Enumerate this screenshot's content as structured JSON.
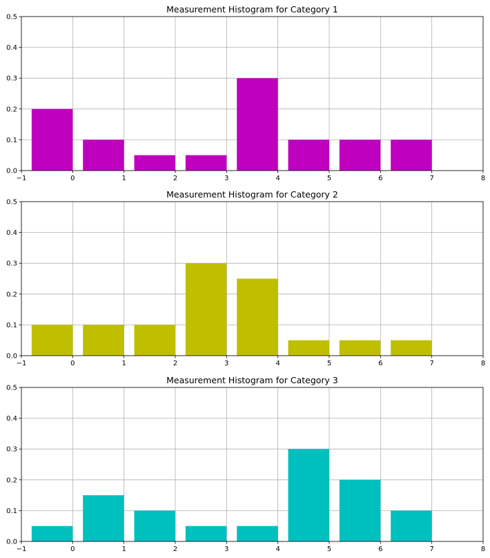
{
  "chart_data": [
    {
      "type": "bar",
      "title": "Measurement Histogram for Category 1",
      "x": [
        0,
        1,
        2,
        3,
        4,
        5,
        6,
        7
      ],
      "values": [
        0.2,
        0.1,
        0.05,
        0.05,
        0.3,
        0.1,
        0.1,
        0.1
      ],
      "bar_align": "edge-left",
      "bar_width": 0.8,
      "color": "#bf00bf",
      "xlim": [
        -1,
        8
      ],
      "ylim": [
        0,
        0.5
      ],
      "xticks": [
        -1,
        0,
        1,
        2,
        3,
        4,
        5,
        6,
        7,
        8
      ],
      "yticks": [
        0.0,
        0.1,
        0.2,
        0.3,
        0.4,
        0.5
      ],
      "xtick_labels": [
        "−1",
        "0",
        "1",
        "2",
        "3",
        "4",
        "5",
        "6",
        "7",
        "8"
      ],
      "ytick_labels": [
        "0.0",
        "0.1",
        "0.2",
        "0.3",
        "0.4",
        "0.5"
      ],
      "grid": true,
      "legend": "none"
    },
    {
      "type": "bar",
      "title": "Measurement Histogram for Category 2",
      "x": [
        0,
        1,
        2,
        3,
        4,
        5,
        6,
        7
      ],
      "values": [
        0.1,
        0.1,
        0.1,
        0.3,
        0.25,
        0.05,
        0.05,
        0.05
      ],
      "bar_align": "edge-left",
      "bar_width": 0.8,
      "color": "#bfbf00",
      "xlim": [
        -1,
        8
      ],
      "ylim": [
        0,
        0.5
      ],
      "xticks": [
        -1,
        0,
        1,
        2,
        3,
        4,
        5,
        6,
        7,
        8
      ],
      "yticks": [
        0.0,
        0.1,
        0.2,
        0.3,
        0.4,
        0.5
      ],
      "xtick_labels": [
        "−1",
        "0",
        "1",
        "2",
        "3",
        "4",
        "5",
        "6",
        "7",
        "8"
      ],
      "ytick_labels": [
        "0.0",
        "0.1",
        "0.2",
        "0.3",
        "0.4",
        "0.5"
      ],
      "grid": true,
      "legend": "none"
    },
    {
      "type": "bar",
      "title": "Measurement Histogram for Category 3",
      "x": [
        0,
        1,
        2,
        3,
        4,
        5,
        6,
        7
      ],
      "values": [
        0.05,
        0.15,
        0.1,
        0.05,
        0.05,
        0.3,
        0.2,
        0.1
      ],
      "bar_align": "edge-left",
      "bar_width": 0.8,
      "color": "#00bfbf",
      "xlim": [
        -1,
        8
      ],
      "ylim": [
        0,
        0.5
      ],
      "xticks": [
        -1,
        0,
        1,
        2,
        3,
        4,
        5,
        6,
        7,
        8
      ],
      "yticks": [
        0.0,
        0.1,
        0.2,
        0.3,
        0.4,
        0.5
      ],
      "xtick_labels": [
        "−1",
        "0",
        "1",
        "2",
        "3",
        "4",
        "5",
        "6",
        "7",
        "8"
      ],
      "ytick_labels": [
        "0.0",
        "0.1",
        "0.2",
        "0.3",
        "0.4",
        "0.5"
      ],
      "grid": true,
      "legend": "none"
    }
  ]
}
